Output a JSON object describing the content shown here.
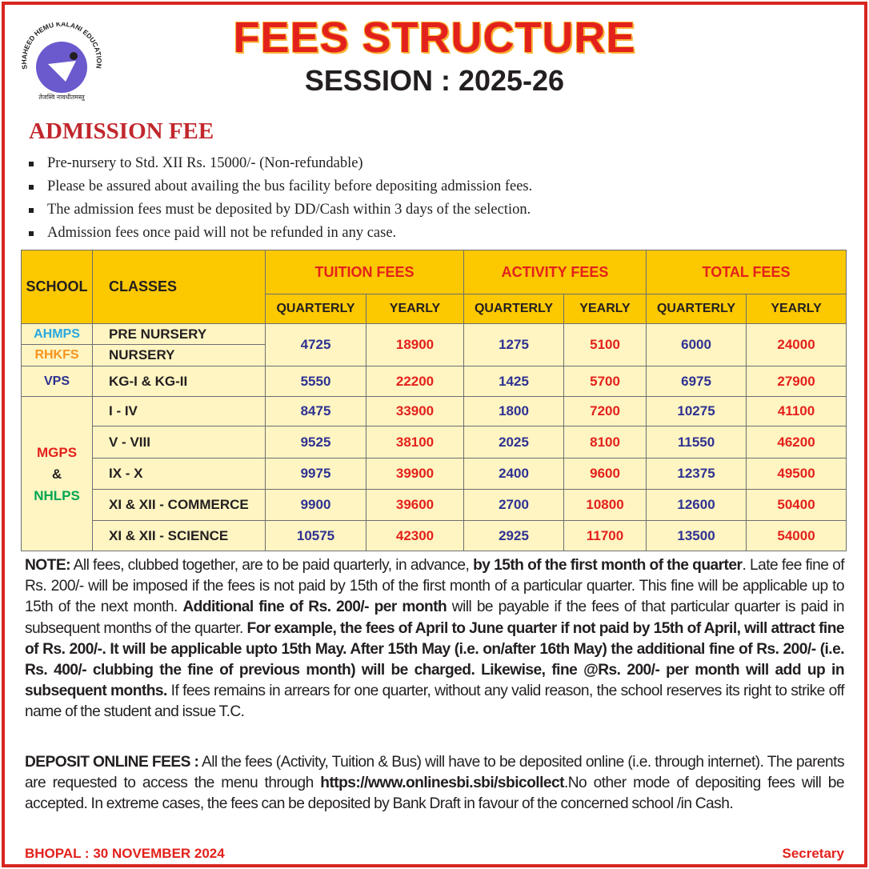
{
  "header": {
    "title": "FEES STRUCTURE",
    "session": "SESSION : 2025-26",
    "logo_text": "SHAHEED HEMU KALANI EDUCATIONAL SOCIETY",
    "logo_motto": "तेजस्वि नावधीतमस्तु"
  },
  "admission": {
    "heading": "ADMISSION FEE",
    "bullets": [
      "Pre-nursery to Std. XII Rs. 15000/- (Non-refundable)",
      "Please be assured about availing the bus facility before depositing admission fees.",
      "The admission fees must be deposited by DD/Cash within 3 days of the selection.",
      "Admission fees once paid will not be refunded in any case."
    ]
  },
  "table": {
    "headers": {
      "school": "SCHOOL",
      "classes": "CLASSES",
      "tuition": "TUITION FEES",
      "activity": "ACTIVITY FEES",
      "total": "TOTAL FEES",
      "quarterly": "QUARTERLY",
      "yearly": "YEARLY"
    },
    "schools": [
      {
        "name": "AHMPS",
        "color": "#27a9e1"
      },
      {
        "name": "RHKFS",
        "color": "#f7941d"
      },
      {
        "name": "VPS",
        "color": "#2e3192"
      },
      {
        "name": "MGPS",
        "color": "#e3211c",
        "amp": "&",
        "name2": "NHLPS",
        "color2": "#00a651"
      }
    ],
    "rows": [
      {
        "class": "PRE NURSERY",
        "fees": [
          "4725",
          "18900",
          "1275",
          "5100",
          "6000",
          "24000"
        ]
      },
      {
        "class": "NURSERY",
        "fees": null
      },
      {
        "class": "KG-I & KG-II",
        "fees": [
          "5550",
          "22200",
          "1425",
          "5700",
          "6975",
          "27900"
        ]
      },
      {
        "class": "I - IV",
        "fees": [
          "8475",
          "33900",
          "1800",
          "7200",
          "10275",
          "41100"
        ]
      },
      {
        "class": "V - VIII",
        "fees": [
          "9525",
          "38100",
          "2025",
          "8100",
          "11550",
          "46200"
        ]
      },
      {
        "class": "IX - X",
        "fees": [
          "9975",
          "39900",
          "2400",
          "9600",
          "12375",
          "49500"
        ]
      },
      {
        "class": "XI & XII - COMMERCE",
        "fees": [
          "9900",
          "39600",
          "2700",
          "10800",
          "12600",
          "50400"
        ]
      },
      {
        "class": "XI & XII - SCIENCE",
        "fees": [
          "10575",
          "42300",
          "2925",
          "11700",
          "13500",
          "54000"
        ]
      }
    ]
  },
  "note": [
    {
      "t": "NOTE:",
      "b": true
    },
    {
      "t": "  All fees, clubbed together, are to be paid quarterly, in advance, ",
      "b": false
    },
    {
      "t": "by 15th of the first month of the quarter",
      "b": true
    },
    {
      "t": ". Late fee fine of Rs. 200/- will be imposed if the fees is not paid by 15th of the first month of a particular quarter. This fine will be applicable up to 15th of the next month. ",
      "b": false
    },
    {
      "t": "Additional fine of Rs. 200/- per month",
      "b": true
    },
    {
      "t": " will be payable if the fees of that particular quarter is paid in subsequent months of the quarter. ",
      "b": false
    },
    {
      "t": "For example, the fees of April to June quarter if not paid by 15th of April, will attract fine of Rs. 200/-. It will be applicable upto 15th May. After 15th May (i.e. on/after 16th May) the additional fine of Rs. 200/- (i.e. Rs. 400/- clubbing the fine of previous month) will be charged. Likewise, fine @Rs. 200/- per month will add up in subsequent months.",
      "b": true
    },
    {
      "t": " If fees remains in arrears for one quarter, without any valid reason, the school reserves its right to strike off name of the student and issue T.C.",
      "b": false
    }
  ],
  "deposit": [
    {
      "t": "DEPOSIT ONLINE FEES :",
      "b": true
    },
    {
      "t": " All the fees (Activity, Tuition & Bus) will have to be deposited online (i.e. through internet). The parents are requested to access the menu through ",
      "b": false
    },
    {
      "t": "https://www.onlinesbi.sbi/sbicollect",
      "b": true
    },
    {
      "t": ".No other mode of depositing fees will be accepted. In extreme cases, the fees can be deposited by Bank Draft in favour of the concerned school /in Cash.",
      "b": false
    }
  ],
  "footer": {
    "place_date": "BHOPAL : 30 NOVEMBER 2024",
    "signatory": "Secretary"
  },
  "colors": {
    "border": "#d7261e",
    "header_bg": "#fcc800",
    "body_bg": "#fff5c2",
    "quarterly": "#2e3192",
    "yearly": "#e3211c"
  }
}
